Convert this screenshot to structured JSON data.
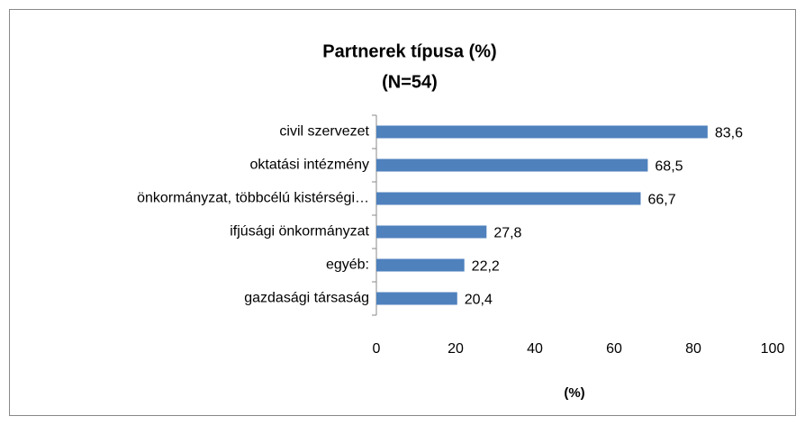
{
  "chart_data": {
    "type": "bar",
    "orientation": "horizontal",
    "title": "Partnerek típusa (%)",
    "subtitle": "(N=54)",
    "x_label": "(%)",
    "categories": [
      "civil szervezet",
      "oktatási intézmény",
      "önkormányzat, többcélú kistérségi…",
      "ifjúsági önkormányzat",
      "egyéb:",
      "gazdasági társaság"
    ],
    "values": [
      83.6,
      68.5,
      66.7,
      27.8,
      22.2,
      20.4
    ],
    "value_labels": [
      "83,6",
      "68,5",
      "66,7",
      "27,8",
      "22,2",
      "20,4"
    ],
    "color": "#4f81bd",
    "xlim": [
      0,
      100
    ],
    "xticks": [
      0,
      20,
      40,
      60,
      80,
      100
    ],
    "grid": false
  }
}
